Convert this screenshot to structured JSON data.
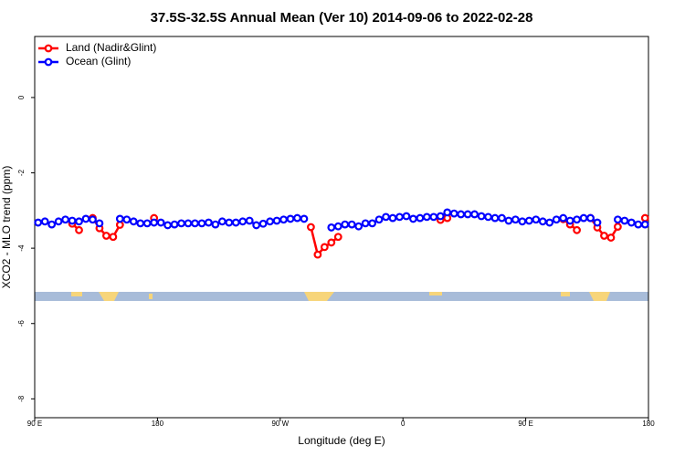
{
  "chart_data": {
    "type": "line",
    "title": "37.5S-32.5S Annual Mean (Ver 10)   2014-09-06 to 2022-02-28",
    "x_label": "Longitude (deg E)",
    "y_label": "XCO2 - MLO trend (ppm)",
    "xlim": [
      90,
      540
    ],
    "xticks": [
      {
        "value": 90,
        "label": "90 E"
      },
      180,
      {
        "value": 270,
        "label": "90 W"
      },
      {
        "value": 360,
        "label": "0"
      },
      {
        "value": 450,
        "label": "90 E"
      },
      {
        "value": 540,
        "label": "180"
      }
    ],
    "ylim": [
      -8.5,
      1.62
    ],
    "yticks": [
      0,
      -2,
      -4,
      -6,
      -8
    ],
    "legend": "top-left",
    "x": [
      92.5,
      97.5,
      102.5,
      107.5,
      112.5,
      117.5,
      122.5,
      127.5,
      132.5,
      137.5,
      142.5,
      147.5,
      152.5,
      157.5,
      162.5,
      167.5,
      172.5,
      177.5,
      182.5,
      187.5,
      192.5,
      197.5,
      202.5,
      207.5,
      212.5,
      217.5,
      222.5,
      227.5,
      232.5,
      237.5,
      242.5,
      247.5,
      252.5,
      257.5,
      262.5,
      267.5,
      272.5,
      277.5,
      282.5,
      287.5,
      292.5,
      297.5,
      302.5,
      307.5,
      312.5,
      317.5,
      322.5,
      327.5,
      332.5,
      337.5,
      342.5,
      347.5,
      352.5,
      357.5,
      362.5,
      367.5,
      372.5,
      377.5,
      382.5,
      387.5,
      392.5,
      397.5,
      402.5,
      407.5,
      412.5,
      417.5,
      422.5,
      427.5,
      432.5,
      437.5,
      442.5,
      447.5,
      452.5,
      457.5,
      462.5,
      467.5,
      472.5,
      477.5,
      482.5,
      487.5,
      492.5,
      497.5,
      502.5,
      507.5,
      512.5,
      517.5,
      522.5,
      527.5,
      532.5,
      537.5
    ],
    "series": [
      {
        "name": "Land (Nadir&Glint)",
        "color": "#ff0000",
        "values": [
          null,
          null,
          null,
          null,
          null,
          -3.35,
          -3.52,
          null,
          -3.2,
          -3.47,
          -3.67,
          -3.7,
          -3.38,
          null,
          null,
          null,
          null,
          -3.2,
          null,
          null,
          null,
          null,
          null,
          null,
          null,
          null,
          null,
          null,
          null,
          null,
          null,
          null,
          null,
          null,
          null,
          null,
          null,
          null,
          null,
          null,
          -3.44,
          -4.17,
          -3.97,
          -3.85,
          -3.7,
          null,
          null,
          null,
          null,
          null,
          null,
          null,
          null,
          null,
          null,
          null,
          null,
          null,
          null,
          -3.25,
          -3.2,
          null,
          null,
          null,
          null,
          null,
          null,
          null,
          null,
          null,
          null,
          null,
          null,
          null,
          null,
          null,
          null,
          -3.23,
          -3.37,
          -3.52,
          null,
          -3.2,
          -3.45,
          -3.67,
          -3.72,
          -3.43,
          null,
          null,
          null,
          -3.2
        ]
      },
      {
        "name": "Ocean (Glint)",
        "color": "#0000ff",
        "values": [
          -3.32,
          -3.29,
          -3.37,
          -3.29,
          -3.24,
          -3.27,
          -3.29,
          -3.22,
          -3.24,
          -3.34,
          null,
          null,
          -3.22,
          -3.24,
          -3.29,
          -3.34,
          -3.34,
          -3.32,
          -3.32,
          -3.39,
          -3.37,
          -3.34,
          -3.34,
          -3.34,
          -3.34,
          -3.32,
          -3.37,
          -3.29,
          -3.32,
          -3.32,
          -3.29,
          -3.27,
          -3.39,
          -3.35,
          -3.29,
          -3.27,
          -3.24,
          -3.22,
          -3.2,
          -3.22,
          null,
          null,
          null,
          -3.45,
          -3.42,
          -3.37,
          -3.37,
          -3.42,
          -3.34,
          -3.34,
          -3.24,
          -3.17,
          -3.2,
          -3.17,
          -3.15,
          -3.22,
          -3.2,
          -3.17,
          -3.17,
          -3.15,
          -3.05,
          -3.08,
          -3.1,
          -3.1,
          -3.1,
          -3.15,
          -3.17,
          -3.2,
          -3.2,
          -3.27,
          -3.24,
          -3.29,
          -3.27,
          -3.24,
          -3.29,
          -3.32,
          -3.24,
          -3.2,
          -3.27,
          -3.24,
          -3.2,
          -3.2,
          -3.32,
          null,
          null,
          -3.24,
          -3.27,
          -3.32,
          -3.37,
          -3.37
        ]
      }
    ]
  }
}
